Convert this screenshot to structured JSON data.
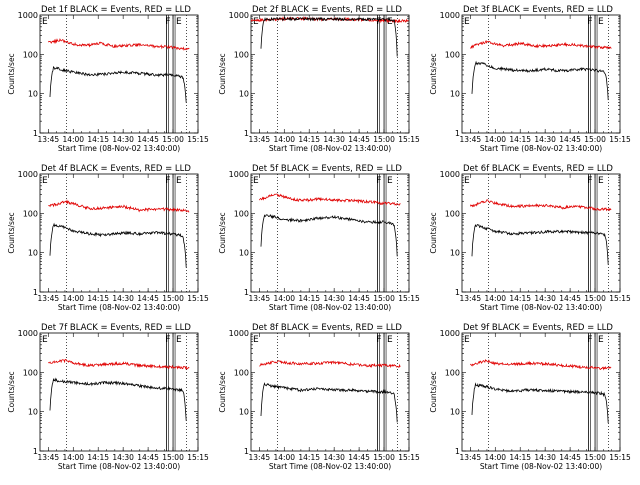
{
  "figure": {
    "ylabel": "Counts/sec",
    "xlabel": "Start Time (08-Nov-02 13:40:00)",
    "x_ticks": [
      "13:45",
      "14:00",
      "14:15",
      "14:30",
      "14:45",
      "15:00",
      "15:15"
    ],
    "y_ticks": [
      "1",
      "10",
      "100",
      "1000"
    ],
    "marker_labels": [
      "F",
      "E"
    ]
  },
  "colors": {
    "events": "#000000",
    "lld": "#e00000"
  },
  "chart_data": [
    {
      "type": "line",
      "detector": "1f",
      "title": "Det 1f BLACK = Events, RED = LLD",
      "xlabel": "Start Time (08-Nov-02 13:40:00)",
      "ylabel": "Counts/sec",
      "x_unit": "minutes",
      "xlim": [
        0,
        95
      ],
      "ylim": [
        1,
        1000
      ],
      "yscale": "log",
      "x_ticks": [
        "13:45",
        "14:00",
        "14:15",
        "14:30",
        "14:45",
        "15:00",
        "15:15"
      ],
      "vertical_lines_time": [
        "13:56",
        "15:08"
      ],
      "markers": {
        "F": "14:56",
        "E": "15:00"
      },
      "series": [
        {
          "color": "#e00000",
          "x": [
            5,
            8,
            12,
            20,
            30,
            36,
            45,
            60,
            70,
            80,
            86,
            90
          ],
          "y": [
            200,
            210,
            235,
            180,
            170,
            190,
            160,
            175,
            160,
            150,
            140,
            135
          ]
        },
        {
          "color": "#000000",
          "x": [
            6,
            8,
            12,
            20,
            30,
            40,
            50,
            60,
            70,
            80,
            84,
            86,
            88
          ],
          "y": [
            8,
            45,
            42,
            35,
            30,
            32,
            35,
            33,
            30,
            30,
            28,
            26,
            5
          ]
        }
      ]
    },
    {
      "type": "line",
      "detector": "2f",
      "title": "Det 2f BLACK = Events, RED = LLD",
      "xlabel": "Start Time (08-Nov-02 13:40:00)",
      "ylabel": "Counts/sec",
      "x_unit": "minutes",
      "xlim": [
        0,
        95
      ],
      "ylim": [
        1,
        1000
      ],
      "yscale": "log",
      "x_ticks": [
        "13:45",
        "14:00",
        "14:15",
        "14:30",
        "14:45",
        "15:00",
        "15:15"
      ],
      "vertical_lines_time": [
        "13:56",
        "15:08"
      ],
      "markers": {
        "F": "14:56",
        "E": "15:00"
      },
      "series": [
        {
          "color": "#e00000",
          "x": [
            0,
            10,
            20,
            30,
            40,
            50,
            60,
            70,
            80,
            95
          ],
          "y": [
            700,
            760,
            800,
            810,
            790,
            780,
            770,
            760,
            720,
            700
          ]
        },
        {
          "color": "#000000",
          "x": [
            6,
            8,
            20,
            40,
            60,
            80,
            86,
            88
          ],
          "y": [
            150,
            780,
            800,
            790,
            780,
            760,
            740,
            60
          ]
        }
      ]
    },
    {
      "type": "line",
      "detector": "3f",
      "title": "Det 3f BLACK = Events, RED = LLD",
      "xlabel": "Start Time (08-Nov-02 13:40:00)",
      "ylabel": "Counts/sec",
      "x_unit": "minutes",
      "xlim": [
        0,
        95
      ],
      "ylim": [
        1,
        1000
      ],
      "yscale": "log",
      "x_ticks": [
        "13:45",
        "14:00",
        "14:15",
        "14:30",
        "14:45",
        "15:00",
        "15:15"
      ],
      "vertical_lines_time": [
        "13:56",
        "15:08"
      ],
      "markers": {
        "F": "14:56",
        "E": "15:00"
      },
      "series": [
        {
          "color": "#e00000",
          "x": [
            5,
            10,
            15,
            25,
            35,
            45,
            55,
            65,
            75,
            85,
            90
          ],
          "y": [
            150,
            180,
            210,
            165,
            190,
            160,
            170,
            180,
            160,
            150,
            140
          ]
        },
        {
          "color": "#000000",
          "x": [
            6,
            8,
            12,
            20,
            30,
            40,
            50,
            60,
            70,
            80,
            86,
            88
          ],
          "y": [
            10,
            60,
            58,
            45,
            40,
            38,
            42,
            38,
            42,
            40,
            35,
            5
          ]
        }
      ]
    },
    {
      "type": "line",
      "detector": "4f",
      "title": "Det 4f BLACK = Events, RED = LLD",
      "xlabel": "Start Time (08-Nov-02 13:40:00)",
      "ylabel": "Counts/sec",
      "x_unit": "minutes",
      "xlim": [
        0,
        95
      ],
      "ylim": [
        1,
        1000
      ],
      "yscale": "log",
      "x_ticks": [
        "13:45",
        "14:00",
        "14:15",
        "14:30",
        "14:45",
        "15:00",
        "15:15"
      ],
      "vertical_lines_time": [
        "13:56",
        "15:08"
      ],
      "markers": {
        "F": "14:56",
        "E": "15:00"
      },
      "series": [
        {
          "color": "#e00000",
          "x": [
            5,
            10,
            15,
            20,
            30,
            40,
            50,
            60,
            70,
            80,
            90
          ],
          "y": [
            150,
            170,
            200,
            175,
            130,
            140,
            150,
            120,
            130,
            125,
            115
          ]
        },
        {
          "color": "#000000",
          "x": [
            6,
            8,
            12,
            20,
            30,
            40,
            50,
            60,
            70,
            80,
            84,
            86,
            88
          ],
          "y": [
            8,
            50,
            48,
            35,
            30,
            28,
            32,
            30,
            32,
            30,
            28,
            25,
            3
          ]
        }
      ]
    },
    {
      "type": "line",
      "detector": "5f",
      "title": "Det 5f BLACK = Events, RED = LLD",
      "xlabel": "Start Time (08-Nov-02 13:40:00)",
      "ylabel": "Counts/sec",
      "x_unit": "minutes",
      "xlim": [
        0,
        95
      ],
      "ylim": [
        1,
        1000
      ],
      "yscale": "log",
      "x_ticks": [
        "13:45",
        "14:00",
        "14:15",
        "14:30",
        "14:45",
        "15:00",
        "15:15"
      ],
      "vertical_lines_time": [
        "13:56",
        "15:08"
      ],
      "markers": {
        "F": "14:56",
        "E": "15:00"
      },
      "series": [
        {
          "color": "#e00000",
          "x": [
            5,
            10,
            15,
            20,
            30,
            40,
            50,
            60,
            70,
            80,
            90
          ],
          "y": [
            230,
            260,
            300,
            260,
            210,
            230,
            220,
            210,
            200,
            180,
            170
          ]
        },
        {
          "color": "#000000",
          "x": [
            6,
            8,
            12,
            20,
            30,
            40,
            50,
            60,
            70,
            80,
            84,
            86,
            88
          ],
          "y": [
            15,
            90,
            85,
            70,
            65,
            75,
            80,
            70,
            60,
            60,
            55,
            50,
            6
          ]
        }
      ]
    },
    {
      "type": "line",
      "detector": "6f",
      "title": "Det 6f BLACK = Events, RED = LLD",
      "xlabel": "Start Time (08-Nov-02 13:40:00)",
      "ylabel": "Counts/sec",
      "x_unit": "minutes",
      "xlim": [
        0,
        95
      ],
      "ylim": [
        1,
        1000
      ],
      "yscale": "log",
      "x_ticks": [
        "13:45",
        "14:00",
        "14:15",
        "14:30",
        "14:45",
        "15:00",
        "15:15"
      ],
      "vertical_lines_time": [
        "13:56",
        "15:08"
      ],
      "markers": {
        "F": "14:56",
        "E": "15:00"
      },
      "series": [
        {
          "color": "#e00000",
          "x": [
            5,
            10,
            15,
            20,
            30,
            40,
            50,
            60,
            70,
            80,
            90
          ],
          "y": [
            150,
            175,
            210,
            180,
            150,
            155,
            160,
            140,
            150,
            130,
            125
          ]
        },
        {
          "color": "#000000",
          "x": [
            6,
            8,
            12,
            20,
            30,
            40,
            50,
            60,
            70,
            80,
            84,
            86,
            88
          ],
          "y": [
            8,
            50,
            45,
            35,
            30,
            32,
            34,
            35,
            33,
            32,
            30,
            28,
            4
          ]
        }
      ]
    },
    {
      "type": "line",
      "detector": "7f",
      "title": "Det 7f BLACK = Events, RED = LLD",
      "xlabel": "Start Time (08-Nov-02 13:40:00)",
      "ylabel": "Counts/sec",
      "x_unit": "minutes",
      "xlim": [
        0,
        95
      ],
      "ylim": [
        1,
        1000
      ],
      "yscale": "log",
      "x_ticks": [
        "13:45",
        "14:00",
        "14:15",
        "14:30",
        "14:45",
        "15:00",
        "15:15"
      ],
      "vertical_lines_time": [
        "13:56",
        "15:08"
      ],
      "markers": {
        "F": "14:56",
        "E": "15:00"
      },
      "series": [
        {
          "color": "#e00000",
          "x": [
            5,
            10,
            15,
            20,
            30,
            40,
            50,
            60,
            70,
            80,
            90
          ],
          "y": [
            170,
            190,
            200,
            175,
            150,
            160,
            170,
            150,
            140,
            135,
            130
          ]
        },
        {
          "color": "#000000",
          "x": [
            6,
            8,
            12,
            20,
            30,
            40,
            50,
            60,
            70,
            80,
            84,
            86,
            88
          ],
          "y": [
            10,
            65,
            60,
            55,
            50,
            55,
            52,
            45,
            40,
            38,
            36,
            34,
            4
          ]
        }
      ]
    },
    {
      "type": "line",
      "detector": "8f",
      "title": "Det 8f BLACK = Events, RED = LLD",
      "xlabel": "Start Time (08-Nov-02 13:40:00)",
      "ylabel": "Counts/sec",
      "x_unit": "minutes",
      "xlim": [
        0,
        95
      ],
      "ylim": [
        1,
        1000
      ],
      "yscale": "log",
      "x_ticks": [
        "13:45",
        "14:00",
        "14:15",
        "14:30",
        "14:45",
        "15:00",
        "15:15"
      ],
      "vertical_lines_time": [
        "13:56",
        "15:08"
      ],
      "markers": {
        "F": "14:56",
        "E": "15:00"
      },
      "series": [
        {
          "color": "#e00000",
          "x": [
            5,
            10,
            15,
            20,
            30,
            40,
            50,
            60,
            70,
            80,
            90
          ],
          "y": [
            150,
            170,
            190,
            175,
            165,
            170,
            180,
            160,
            150,
            150,
            145
          ]
        },
        {
          "color": "#000000",
          "x": [
            6,
            8,
            12,
            20,
            30,
            40,
            50,
            60,
            70,
            80,
            84,
            86,
            88
          ],
          "y": [
            8,
            50,
            45,
            40,
            35,
            38,
            36,
            35,
            33,
            32,
            30,
            28,
            4
          ]
        }
      ]
    },
    {
      "type": "line",
      "detector": "9f",
      "title": "Det 9f BLACK = Events, RED = LLD",
      "xlabel": "Start Time (08-Nov-02 13:40:00)",
      "ylabel": "Counts/sec",
      "x_unit": "minutes",
      "xlim": [
        0,
        95
      ],
      "ylim": [
        1,
        1000
      ],
      "yscale": "log",
      "x_ticks": [
        "13:45",
        "14:00",
        "14:15",
        "14:30",
        "14:45",
        "15:00",
        "15:15"
      ],
      "vertical_lines_time": [
        "13:56",
        "15:08"
      ],
      "markers": {
        "F": "14:56",
        "E": "15:00"
      },
      "series": [
        {
          "color": "#e00000",
          "x": [
            5,
            10,
            15,
            20,
            30,
            40,
            50,
            60,
            70,
            80,
            90
          ],
          "y": [
            150,
            175,
            200,
            170,
            160,
            170,
            165,
            150,
            140,
            130,
            125
          ]
        },
        {
          "color": "#000000",
          "x": [
            6,
            8,
            12,
            20,
            30,
            40,
            50,
            60,
            70,
            80,
            84,
            86,
            88
          ],
          "y": [
            8,
            48,
            45,
            38,
            33,
            36,
            35,
            33,
            32,
            30,
            29,
            27,
            4
          ]
        }
      ]
    }
  ]
}
